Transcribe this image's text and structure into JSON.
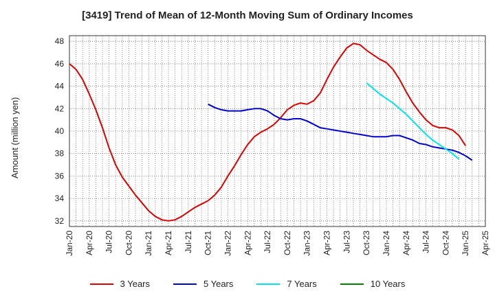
{
  "chart_data": {
    "type": "line",
    "title": "[3419]  Trend of Mean of 12-Month Moving Sum of Ordinary Incomes",
    "xlabel": "",
    "ylabel": "Amount (million yen)",
    "ylim": [
      31.5,
      48.5
    ],
    "yticks": [
      32,
      34,
      36,
      38,
      40,
      42,
      44,
      46,
      48
    ],
    "x_start": "Jan-20",
    "x_month_count": 63,
    "xtick_labels": [
      "Jan-20",
      "Apr-20",
      "Jul-20",
      "Oct-20",
      "Jan-21",
      "Apr-21",
      "Jul-21",
      "Oct-21",
      "Jan-22",
      "Apr-22",
      "Jul-22",
      "Oct-22",
      "Jan-23",
      "Apr-23",
      "Jul-23",
      "Oct-23",
      "Jan-24",
      "Apr-24",
      "Jul-24",
      "Oct-24",
      "Jan-25",
      "Apr-25"
    ],
    "series": [
      {
        "name": "3 Years",
        "color": "#dd0000",
        "start_index": 0,
        "values": [
          46.0,
          45.5,
          44.6,
          43.3,
          41.9,
          40.3,
          38.5,
          37.0,
          35.9,
          35.1,
          34.3,
          33.6,
          32.9,
          32.4,
          32.1,
          32.0,
          32.1,
          32.4,
          32.8,
          33.2,
          33.5,
          33.8,
          34.3,
          35.0,
          36.0,
          36.9,
          37.9,
          38.8,
          39.5,
          39.9,
          40.2,
          40.6,
          41.2,
          41.9,
          42.3,
          42.5,
          42.4,
          42.7,
          43.4,
          44.6,
          45.7,
          46.6,
          47.4,
          47.8,
          47.7,
          47.2,
          46.8,
          46.4,
          46.1,
          45.5,
          44.6,
          43.5,
          42.5,
          41.7,
          41.0,
          40.5,
          40.3,
          40.3,
          40.1,
          39.6,
          38.7
        ]
      },
      {
        "name": "5 Years",
        "color": "#0000cc",
        "start_index": 21,
        "values": [
          42.4,
          42.1,
          41.9,
          41.8,
          41.8,
          41.8,
          41.9,
          42.0,
          42.0,
          41.8,
          41.4,
          41.1,
          41.0,
          41.1,
          41.1,
          40.9,
          40.6,
          40.3,
          40.2,
          40.1,
          40.0,
          39.9,
          39.8,
          39.7,
          39.6,
          39.5,
          39.5,
          39.5,
          39.6,
          39.6,
          39.4,
          39.2,
          38.9,
          38.8,
          38.6,
          38.5,
          38.4,
          38.3,
          38.1,
          37.8,
          37.4
        ]
      },
      {
        "name": "7 Years",
        "color": "#00e5e5",
        "start_index": 45,
        "values": [
          44.3,
          43.8,
          43.3,
          42.9,
          42.5,
          42.0,
          41.5,
          40.9,
          40.3,
          39.7,
          39.2,
          38.8,
          38.4,
          38.0,
          37.5
        ]
      },
      {
        "name": "10 Years",
        "color": "#008000",
        "start_index": 0,
        "values": []
      }
    ]
  }
}
